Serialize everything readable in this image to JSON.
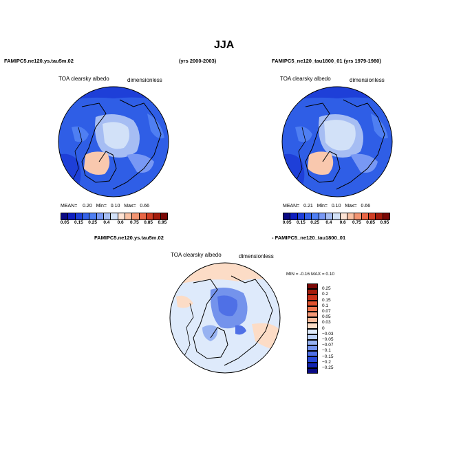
{
  "title": "JJA",
  "panels": [
    {
      "case_label": "FAMIPC5.ne120.ys.tau5m.02",
      "years_label": "(yrs 2000-2003)",
      "variable": "TOA clearsky albedo",
      "units": "dimensionless",
      "stats": {
        "mean_label": "MEAN=",
        "mean": "0.20",
        "min_label": "Min=",
        "min": "0.10",
        "max_label": "Max=",
        "max": "0.66"
      }
    },
    {
      "case_label": "FAMIPC5_ne120_tau1800_01 (yrs 1979-1980)",
      "variable": "TOA clearsky albedo",
      "units": "dimensionless",
      "stats": {
        "mean_label": "MEAN=",
        "mean": "0.21",
        "min_label": "Min=",
        "min": "0.10",
        "max_label": "Max=",
        "max": "0.66"
      }
    }
  ],
  "diff": {
    "case_a": "FAMIPC5.ne120.ys.tau5m.02",
    "case_b": "- FAMIPC5_ne120_tau1800_01",
    "variable": "TOA clearsky albedo",
    "units": "dimensionless",
    "stats_text": "MIN =   -0.16  MAX =    0.10"
  },
  "colorbar_abs": {
    "labels": [
      "0.05",
      "0.15",
      "0.25",
      "0.4",
      "0.6",
      "0.75",
      "0.85",
      "0.95"
    ],
    "colors": [
      "#0a0a85",
      "#0f1fc0",
      "#1e3fd8",
      "#3562e8",
      "#4f7ff2",
      "#7898f4",
      "#a6bdf3",
      "#d2e1f8",
      "#fde3d4",
      "#f9c1a4",
      "#f29471",
      "#e86646",
      "#d03e24",
      "#a41c0c",
      "#7a0806"
    ]
  },
  "colorbar_diff": {
    "labels": [
      "0.25",
      "0.2",
      "0.15",
      "0.1",
      "0.07",
      "0.05",
      "0.03",
      "0",
      "−0.03",
      "−0.05",
      "−0.07",
      "−0.1",
      "−0.15",
      "−0.2",
      "−0.25"
    ],
    "colors": [
      "#7a0806",
      "#a41c0c",
      "#c8321a",
      "#e0522e",
      "#ee7650",
      "#f49876",
      "#f8bb9c",
      "#fcdcc6",
      "#deeafb",
      "#bcd0f6",
      "#97b2f1",
      "#7493ec",
      "#4f70e6",
      "#2848d6",
      "#1224b2",
      "#0a0a85"
    ]
  }
}
